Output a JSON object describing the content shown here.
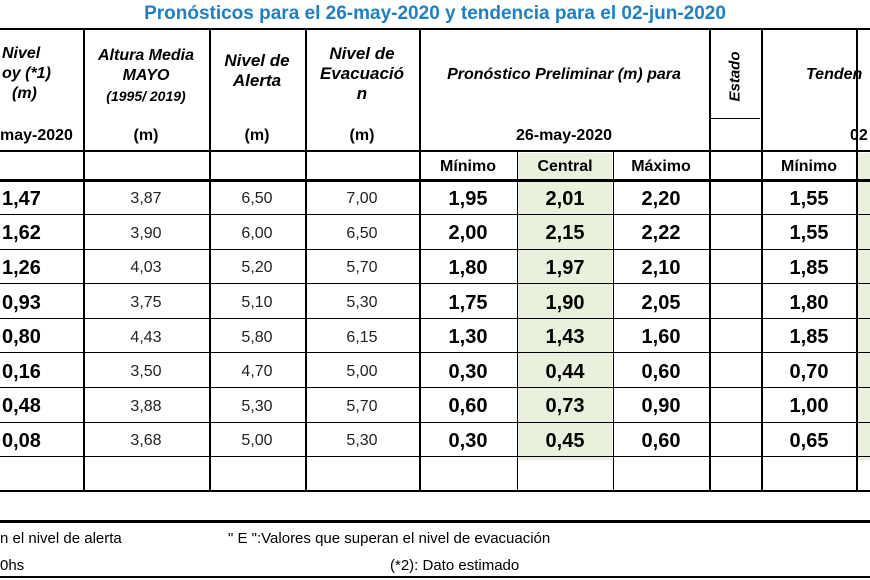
{
  "title": "Pronósticos para el 26-may-2020 y tendencia para el 02-jun-2020",
  "headers": {
    "nivel_hoy": [
      "Nivel",
      "oy (*1)",
      "(m)"
    ],
    "nivel_hoy_date": "may-2020",
    "altura_media": [
      "Altura Media",
      "MAYO",
      "(1995/ 2019)"
    ],
    "altura_unit": "(m)",
    "nivel_alerta": [
      "Nivel de",
      "Alerta"
    ],
    "alerta_unit": "(m)",
    "nivel_evac": [
      "Nivel de",
      "Evacuació",
      "n"
    ],
    "evac_unit": "(m)",
    "pronostico": "Pronóstico Preliminar (m) para",
    "pronostico_date": "26-may-2020",
    "estado": "Estado",
    "tendencia": "Tenden",
    "tendencia_date": "02",
    "minimo": "Mínimo",
    "central": "Central",
    "maximo": "Máximo",
    "minimo2": "Mínimo"
  },
  "rows": [
    {
      "hoy": "1,47",
      "media": "3,87",
      "alerta": "6,50",
      "evac": "7,00",
      "min": "1,95",
      "central": "2,01",
      "max": "2,20",
      "tmin": "1,55"
    },
    {
      "hoy": "1,62",
      "media": "3,90",
      "alerta": "6,00",
      "evac": "6,50",
      "min": "2,00",
      "central": "2,15",
      "max": "2,22",
      "tmin": "1,55"
    },
    {
      "hoy": "1,26",
      "media": "4,03",
      "alerta": "5,20",
      "evac": "5,70",
      "min": "1,80",
      "central": "1,97",
      "max": "2,10",
      "tmin": "1,85"
    },
    {
      "hoy": "0,93",
      "media": "3,75",
      "alerta": "5,10",
      "evac": "5,30",
      "min": "1,75",
      "central": "1,90",
      "max": "2,05",
      "tmin": "1,80"
    },
    {
      "hoy": "0,80",
      "media": "4,43",
      "alerta": "5,80",
      "evac": "6,15",
      "min": "1,30",
      "central": "1,43",
      "max": "1,60",
      "tmin": "1,85"
    },
    {
      "hoy": "0,16",
      "media": "3,50",
      "alerta": "4,70",
      "evac": "5,00",
      "min": "0,30",
      "central": "0,44",
      "max": "0,60",
      "tmin": "0,70"
    },
    {
      "hoy": "0,48",
      "media": "3,88",
      "alerta": "5,30",
      "evac": "5,70",
      "min": "0,60",
      "central": "0,73",
      "max": "0,90",
      "tmin": "1,00"
    },
    {
      "hoy": "0,08",
      "media": "3,68",
      "alerta": "5,00",
      "evac": "5,30",
      "min": "0,30",
      "central": "0,45",
      "max": "0,60",
      "tmin": "0,65"
    }
  ],
  "notes": {
    "left1": "n el nivel de alerta",
    "right1": "\" E \":Valores que superan el nivel de evacuación",
    "left2": "0hs",
    "right2": "(*2): Dato estimado"
  }
}
